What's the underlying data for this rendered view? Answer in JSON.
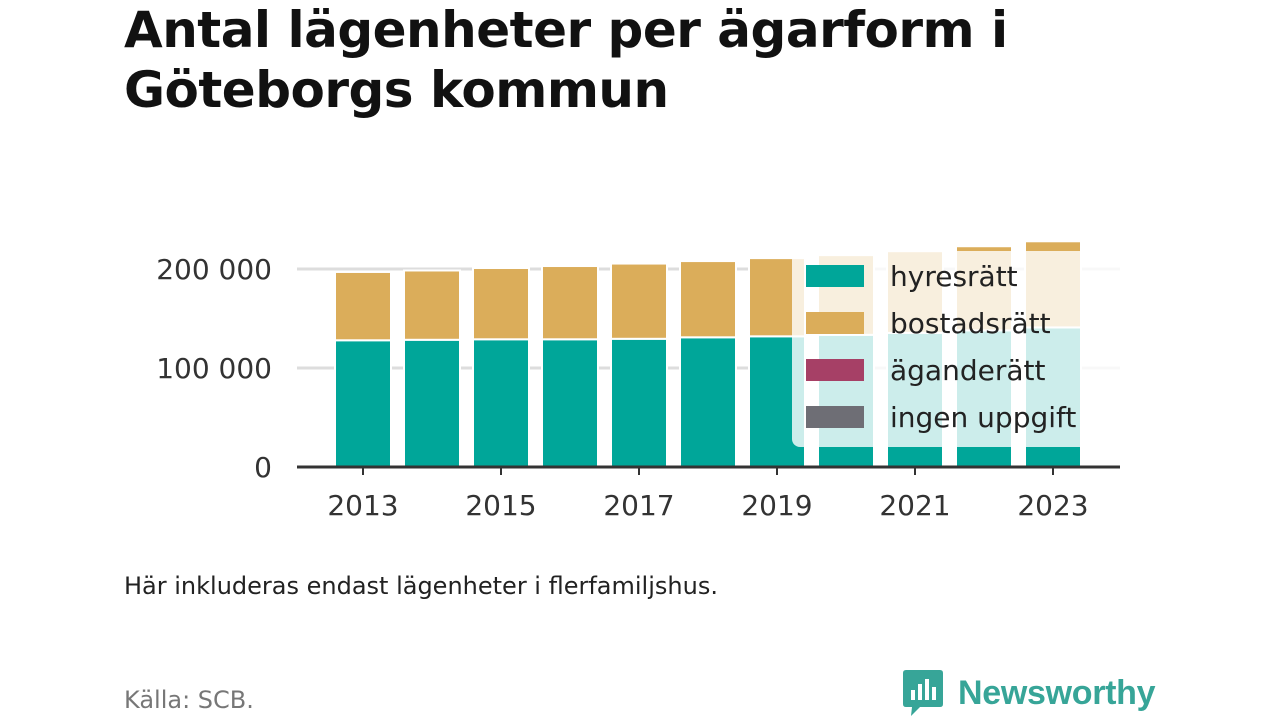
{
  "title": "Antal lägenheter per ägarform i Göteborgs kommun",
  "note": "Här inkluderas endast lägenheter i flerfamiljshus.",
  "source": "Källa: SCB.",
  "brand": {
    "name": "Newsworthy",
    "color": "#37a598",
    "icon": "newsworthy-logo-icon"
  },
  "colors": {
    "hyresratt": "#00a699",
    "bostadsratt": "#dbad5a",
    "aganderatt": "#a64066",
    "ingen_uppgift": "#6e6e75",
    "grid": "#dddddd",
    "axis": "#333333"
  },
  "chart_data": {
    "type": "bar",
    "stacked": true,
    "categories": [
      "2013",
      "2014",
      "2015",
      "2016",
      "2017",
      "2018",
      "2019",
      "2020",
      "2021",
      "2022",
      "2023"
    ],
    "x_tick_labels": [
      "2013",
      "2015",
      "2017",
      "2019",
      "2021",
      "2023"
    ],
    "series": [
      {
        "name": "hyresrätt",
        "color": "#00a699",
        "values": [
          128000,
          128500,
          129000,
          129000,
          129500,
          131000,
          132000,
          133500,
          135500,
          138000,
          141000
        ]
      },
      {
        "name": "bostadsrätt",
        "color": "#dbad5a",
        "values": [
          69000,
          70000,
          72000,
          74000,
          76000,
          77000,
          79000,
          80500,
          82500,
          85000,
          87000
        ]
      },
      {
        "name": "äganderätt",
        "color": "#a64066",
        "values": [
          0,
          0,
          0,
          0,
          0,
          0,
          0,
          0,
          0,
          0,
          0
        ]
      },
      {
        "name": "ingen uppgift",
        "color": "#6e6e75",
        "values": [
          0,
          0,
          0,
          0,
          0,
          0,
          0,
          0,
          0,
          0,
          0
        ]
      }
    ],
    "y_ticks": [
      0,
      100000,
      200000
    ],
    "y_tick_labels": [
      "0",
      "100 000",
      "200 000"
    ],
    "ylim": [
      0,
      230000
    ],
    "xlabel": "",
    "ylabel": "",
    "grid": true,
    "legend_position": "top-right"
  }
}
